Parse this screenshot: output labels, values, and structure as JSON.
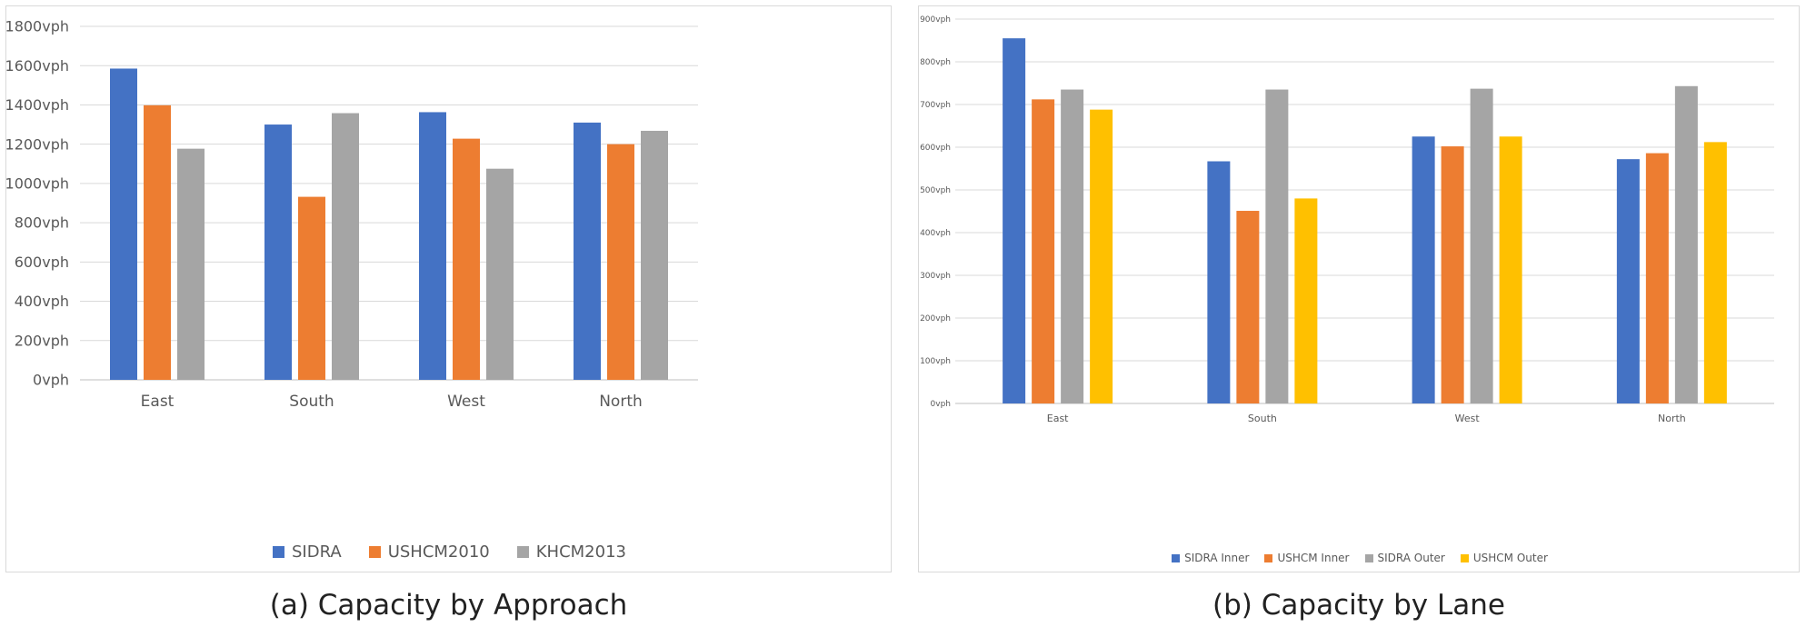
{
  "chart_data": [
    {
      "type": "bar",
      "caption": "(a) Capacity by Approach",
      "categories": [
        "East",
        "South",
        "West",
        "North"
      ],
      "series": [
        {
          "name": "SIDRA",
          "color": "#4472C4",
          "values": [
            1585,
            1300,
            1363,
            1310
          ]
        },
        {
          "name": "USHCM2010",
          "color": "#ED7D31",
          "values": [
            1398,
            932,
            1228,
            1200
          ]
        },
        {
          "name": "KHCM2013",
          "color": "#A5A5A5",
          "values": [
            1177,
            1358,
            1075,
            1268
          ]
        }
      ],
      "ylim": [
        0,
        1800
      ],
      "yticks": [
        0,
        200,
        400,
        600,
        800,
        1000,
        1200,
        1400,
        1600,
        1800
      ],
      "ytick_labels": [
        "0vph",
        "200vph",
        "400vph",
        "600vph",
        "800vph",
        "1000vph",
        "1200vph",
        "1400vph",
        "1600vph",
        "1800vph"
      ],
      "grid": true,
      "legend": "bottom"
    },
    {
      "type": "bar",
      "caption": "(b) Capacity by Lane",
      "categories": [
        "East",
        "South",
        "West",
        "North"
      ],
      "series": [
        {
          "name": "SIDRA Inner",
          "color": "#4472C4",
          "values": [
            855,
            567,
            625,
            572
          ]
        },
        {
          "name": "USHCM Inner",
          "color": "#ED7D31",
          "values": [
            712,
            451,
            602,
            586
          ]
        },
        {
          "name": "SIDRA Outer",
          "color": "#A5A5A5",
          "values": [
            735,
            735,
            737,
            743
          ]
        },
        {
          "name": "USHCM Outer",
          "color": "#FFC000",
          "values": [
            688,
            480,
            625,
            612
          ]
        }
      ],
      "ylim": [
        0,
        900
      ],
      "yticks": [
        0,
        100,
        200,
        300,
        400,
        500,
        600,
        700,
        800,
        900
      ],
      "ytick_labels": [
        "0vph",
        "100vph",
        "200vph",
        "300vph",
        "400vph",
        "500vph",
        "600vph",
        "700vph",
        "800vph",
        "900vph"
      ],
      "grid": true,
      "legend": "bottom"
    }
  ]
}
